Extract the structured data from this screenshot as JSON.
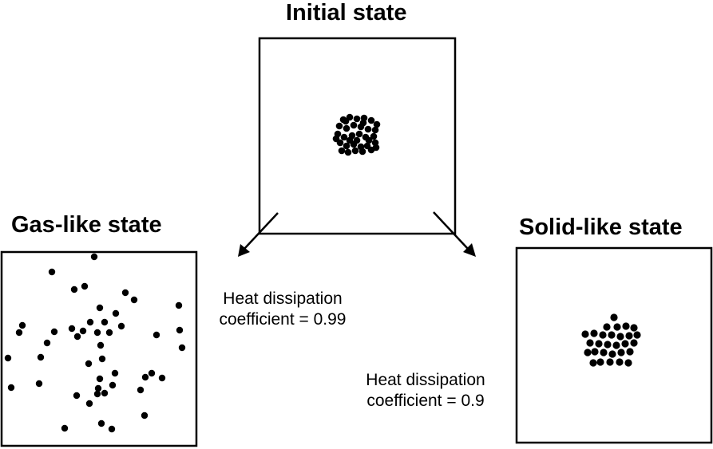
{
  "titles": {
    "initial": "Initial state",
    "gas": "Gas-like state",
    "solid": "Solid-like state"
  },
  "captions": {
    "gas": {
      "line1": "Heat dissipation",
      "line2": "coefficient = 0.99"
    },
    "solid": {
      "line1": "Heat dissipation",
      "line2": "coefficient = 0.9"
    }
  },
  "colors": {
    "stroke": "#000000",
    "particle": "#000000",
    "background": "#ffffff"
  }
}
